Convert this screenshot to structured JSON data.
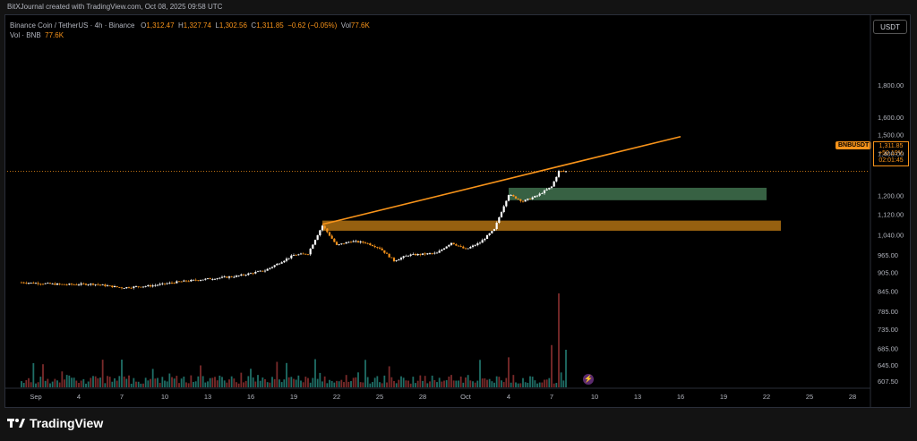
{
  "header": {
    "credit": "BitXJournal created with TradingView.com, Oct 08, 2025 09:58 UTC",
    "symbol_line": "Binance Coin / TetherUS · 4h · Binance",
    "ohlc": {
      "o_label": "O",
      "o": "1,312.47",
      "h_label": "H",
      "h": "1,327.74",
      "l_label": "L",
      "l": "1,302.56",
      "c_label": "C",
      "c": "1,311.85",
      "change": "−0.62 (−0.05%)",
      "vol_label": "Vol",
      "vol": "77.6K"
    },
    "volume_line": {
      "label": "Vol · BNB",
      "value": "77.6K"
    }
  },
  "currency": "USDT",
  "last_price": {
    "symbol": "BNBUSDT",
    "price": "1,311.85",
    "change_pct": "+50.19%",
    "countdown": "02:01:45",
    "value": 1311.85
  },
  "brand": {
    "name": "TradingView"
  },
  "colors": {
    "up": "#ffffff",
    "down": "#f7931a",
    "trendline": "#f7931a",
    "zone_green": "#3d6b4a",
    "zone_orange": "#a66a12",
    "vol_up": "#1f6e66",
    "vol_down": "#7a2a2a",
    "grid": "#1c1f26"
  },
  "chart_data": {
    "type": "candlestick",
    "title": "Binance Coin / TetherUS · 4h · Binance",
    "y_scale": "log",
    "ylim": [
      600,
      1990
    ],
    "y_ticks": [
      "1,800.00",
      "1,600.00",
      "1,500.00",
      "1,400.00",
      "1,200.00",
      "1,120.00",
      "1,040.00",
      "965.00",
      "905.00",
      "845.00",
      "785.00",
      "735.00",
      "685.00",
      "645.00",
      "607.50"
    ],
    "y_tick_values": [
      1800,
      1600,
      1500,
      1400,
      1200,
      1120,
      1040,
      965,
      905,
      845,
      785,
      735,
      685,
      645,
      607.5
    ],
    "x_ticks": [
      "Sep",
      "4",
      "7",
      "10",
      "13",
      "16",
      "19",
      "22",
      "25",
      "28",
      "Oct",
      "4",
      "7",
      "10",
      "13",
      "16",
      "19",
      "22",
      "25",
      "28"
    ],
    "x_tick_days": [
      1,
      4,
      7,
      10,
      13,
      16,
      19,
      22,
      25,
      28,
      31,
      34,
      37,
      40,
      43,
      46,
      49,
      52,
      55,
      58
    ],
    "x_note": "day index: 1 = Sep 1, 31 = Oct 1",
    "price_path": [
      [
        0,
        873
      ],
      [
        3,
        866
      ],
      [
        5,
        868
      ],
      [
        7,
        856
      ],
      [
        9,
        862
      ],
      [
        11,
        875
      ],
      [
        13,
        884
      ],
      [
        15,
        893
      ],
      [
        17,
        912
      ],
      [
        18,
        938
      ],
      [
        19,
        965
      ],
      [
        20,
        970
      ],
      [
        21,
        1075
      ],
      [
        22,
        1000
      ],
      [
        23,
        1015
      ],
      [
        24,
        1010
      ],
      [
        25,
        990
      ],
      [
        26,
        945
      ],
      [
        27,
        965
      ],
      [
        28,
        968
      ],
      [
        29,
        972
      ],
      [
        30,
        1010
      ],
      [
        31,
        985
      ],
      [
        32,
        1010
      ],
      [
        33,
        1060
      ],
      [
        34,
        1205
      ],
      [
        35,
        1175
      ],
      [
        36,
        1200
      ],
      [
        37,
        1240
      ],
      [
        37.5,
        1312
      ],
      [
        38,
        1311.85
      ]
    ],
    "trendline": {
      "start": {
        "day": 21,
        "price": 1080
      },
      "end": {
        "day": 46,
        "price": 1490
      }
    },
    "zones": [
      {
        "name": "support-green",
        "day_start": 34,
        "day_end": 52,
        "price_low": 1180,
        "price_high": 1235
      },
      {
        "name": "support-orange",
        "day_start": 21,
        "day_end": 53,
        "price_low": 1055,
        "price_high": 1095
      }
    ],
    "volume_peaks": [
      {
        "day": 20.5,
        "height_frac": 0.3
      },
      {
        "day": 34,
        "height_frac": 0.32
      },
      {
        "day": 37,
        "height_frac": 0.45
      },
      {
        "day": 37.5,
        "height_frac": 1.0
      },
      {
        "day": 38,
        "height_frac": 0.4
      }
    ]
  }
}
